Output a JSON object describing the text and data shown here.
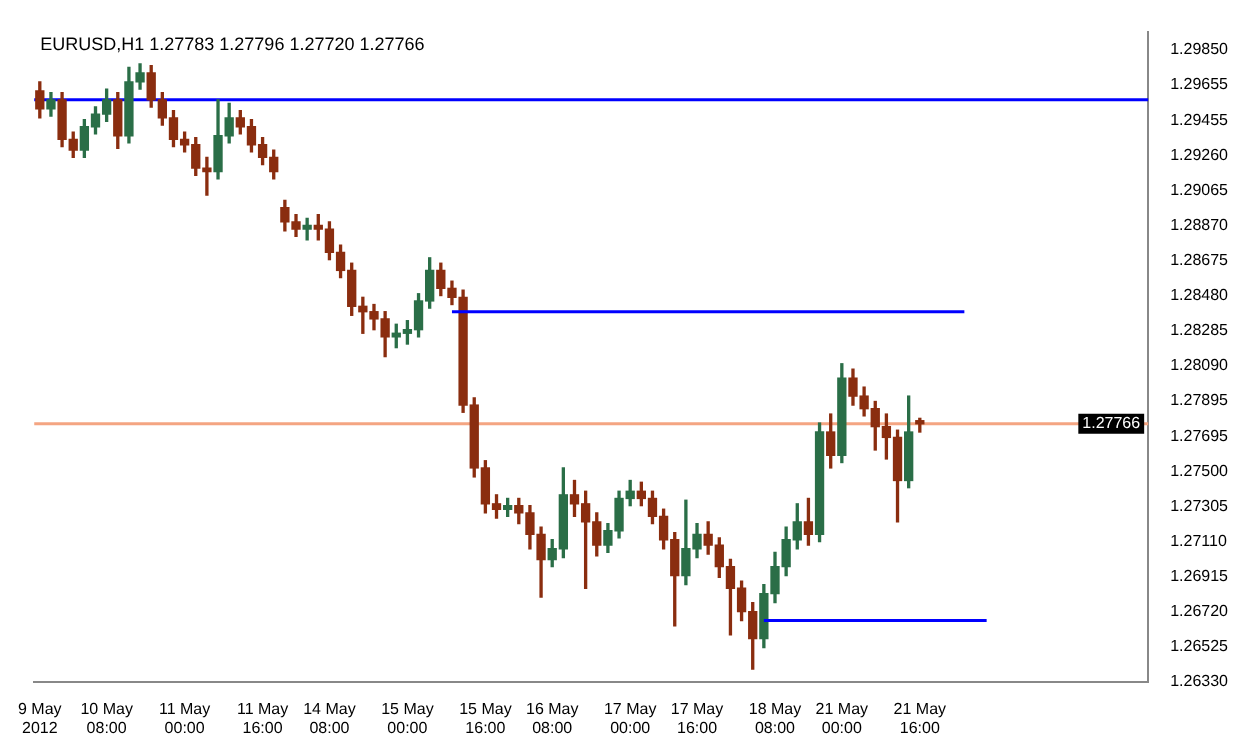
{
  "chart_data": {
    "type": "candlestick",
    "title": "EURUSD,H1 1.27783 1.27796 1.27720 1.27766",
    "categories": [
      "9 May 2012",
      null,
      null,
      null,
      null,
      null,
      "10 May 08:00",
      null,
      null,
      null,
      null,
      null,
      null,
      "11 May 00:00",
      null,
      null,
      null,
      null,
      null,
      null,
      "11 May 16:00",
      null,
      null,
      null,
      null,
      null,
      "14 May 08:00",
      null,
      null,
      null,
      null,
      null,
      null,
      "15 May 00:00",
      null,
      null,
      null,
      null,
      null,
      null,
      "15 May 16:00",
      null,
      null,
      null,
      null,
      null,
      "16 May 08:00",
      null,
      null,
      null,
      null,
      null,
      null,
      "17 May 00:00",
      null,
      null,
      null,
      null,
      null,
      "17 May 16:00",
      null,
      null,
      null,
      null,
      null,
      null,
      "18 May 08:00",
      null,
      null,
      null,
      null,
      null,
      "21 May 00:00",
      null,
      null,
      null,
      null,
      null,
      null,
      "21 May 16:00",
      null,
      null,
      null,
      null,
      null,
      null,
      null,
      null,
      null,
      null,
      null,
      null,
      null,
      null,
      null,
      null,
      null,
      null,
      null,
      null
    ],
    "ohlc": [
      [
        1.2962,
        1.2967,
        1.2947,
        1.2952
      ],
      [
        1.2952,
        1.2961,
        1.2948,
        1.2957
      ],
      [
        1.2957,
        1.2961,
        1.2931,
        1.2935
      ],
      [
        1.2935,
        1.2939,
        1.2925,
        1.2929
      ],
      [
        1.2929,
        1.2946,
        1.2925,
        1.2942
      ],
      [
        1.2942,
        1.2953,
        1.2938,
        1.2949
      ],
      [
        1.2949,
        1.2963,
        1.2945,
        1.2957
      ],
      [
        1.2957,
        1.2961,
        1.293,
        1.2937
      ],
      [
        1.2937,
        1.2975,
        1.2933,
        1.2967
      ],
      [
        1.2967,
        1.2977,
        1.2963,
        1.2972
      ],
      [
        1.2972,
        1.2976,
        1.2953,
        1.2957
      ],
      [
        1.2957,
        1.2961,
        1.2943,
        1.2947
      ],
      [
        1.2947,
        1.2951,
        1.2931,
        1.2935
      ],
      [
        1.2935,
        1.2939,
        1.2928,
        1.2932
      ],
      [
        1.2932,
        1.2936,
        1.2915,
        1.2919
      ],
      [
        1.2919,
        1.2925,
        1.2904,
        1.2917
      ],
      [
        1.2917,
        1.2957,
        1.2913,
        1.2937
      ],
      [
        1.2937,
        1.2955,
        1.2933,
        1.2947
      ],
      [
        1.2947,
        1.2951,
        1.2938,
        1.2942
      ],
      [
        1.2942,
        1.2946,
        1.2928,
        1.2932
      ],
      [
        1.2932,
        1.2936,
        1.2921,
        1.2925
      ],
      [
        1.2925,
        1.2929,
        1.2913,
        1.2917
      ],
      [
        1.2897,
        1.2901,
        1.2884,
        1.2889
      ],
      [
        1.2889,
        1.2893,
        1.2881,
        1.2885
      ],
      [
        1.2885,
        1.2891,
        1.2879,
        1.2887
      ],
      [
        1.2887,
        1.2893,
        1.2879,
        1.2885
      ],
      [
        1.2885,
        1.2889,
        1.2868,
        1.2872
      ],
      [
        1.2872,
        1.2876,
        1.2858,
        1.2862
      ],
      [
        1.2862,
        1.2866,
        1.2837,
        1.2842
      ],
      [
        1.2842,
        1.2847,
        1.2827,
        1.2839
      ],
      [
        1.2839,
        1.2843,
        1.2829,
        1.2835
      ],
      [
        1.2835,
        1.2839,
        1.2814,
        1.2825
      ],
      [
        1.2825,
        1.2832,
        1.2819,
        1.2827
      ],
      [
        1.2827,
        1.2834,
        1.2821,
        1.2829
      ],
      [
        1.2829,
        1.2849,
        1.2825,
        1.2845
      ],
      [
        1.2845,
        1.2869,
        1.2841,
        1.2862
      ],
      [
        1.2862,
        1.2866,
        1.2848,
        1.2852
      ],
      [
        1.2852,
        1.2856,
        1.2843,
        1.2847
      ],
      [
        1.2847,
        1.2851,
        1.2783,
        1.2787
      ],
      [
        1.2787,
        1.2791,
        1.2747,
        1.2752
      ],
      [
        1.2752,
        1.2756,
        1.2727,
        1.2732
      ],
      [
        1.2732,
        1.2737,
        1.2724,
        1.2729
      ],
      [
        1.2729,
        1.2735,
        1.2725,
        1.2731
      ],
      [
        1.2731,
        1.2735,
        1.2721,
        1.2727
      ],
      [
        1.2727,
        1.2731,
        1.2707,
        1.2715
      ],
      [
        1.2715,
        1.2719,
        1.268,
        1.2701
      ],
      [
        1.2701,
        1.2712,
        1.2697,
        1.2707
      ],
      [
        1.2707,
        1.2752,
        1.2702,
        1.2737
      ],
      [
        1.2737,
        1.2745,
        1.2725,
        1.2732
      ],
      [
        1.2732,
        1.2739,
        1.2685,
        1.2722
      ],
      [
        1.2722,
        1.2727,
        1.2703,
        1.2709
      ],
      [
        1.2709,
        1.2721,
        1.2705,
        1.2717
      ],
      [
        1.2717,
        1.2739,
        1.2713,
        1.2735
      ],
      [
        1.2735,
        1.2745,
        1.2731,
        1.2739
      ],
      [
        1.2739,
        1.2744,
        1.2731,
        1.2735
      ],
      [
        1.2735,
        1.2739,
        1.2721,
        1.2725
      ],
      [
        1.2725,
        1.2729,
        1.2707,
        1.2712
      ],
      [
        1.2712,
        1.2716,
        1.2664,
        1.2692
      ],
      [
        1.2692,
        1.2734,
        1.2687,
        1.2707
      ],
      [
        1.2707,
        1.2721,
        1.2702,
        1.2715
      ],
      [
        1.2715,
        1.2722,
        1.2704,
        1.2709
      ],
      [
        1.2709,
        1.2713,
        1.2691,
        1.2697
      ],
      [
        1.2697,
        1.2701,
        1.2659,
        1.2685
      ],
      [
        1.2685,
        1.2689,
        1.2667,
        1.2672
      ],
      [
        1.2672,
        1.2677,
        1.264,
        1.2657
      ],
      [
        1.2657,
        1.2687,
        1.2652,
        1.2682
      ],
      [
        1.2682,
        1.2705,
        1.2677,
        1.2697
      ],
      [
        1.2697,
        1.2719,
        1.2692,
        1.2712
      ],
      [
        1.2712,
        1.2732,
        1.2707,
        1.2722
      ],
      [
        1.2722,
        1.2735,
        1.2709,
        1.2715
      ],
      [
        1.2715,
        1.2777,
        1.2711,
        1.2772
      ],
      [
        1.2772,
        1.2782,
        1.2752,
        1.2759
      ],
      [
        1.2759,
        1.281,
        1.2755,
        1.2802
      ],
      [
        1.2802,
        1.2807,
        1.2787,
        1.2792
      ],
      [
        1.2792,
        1.2797,
        1.2781,
        1.2785
      ],
      [
        1.2785,
        1.2789,
        1.2762,
        1.2775
      ],
      [
        1.2775,
        1.2782,
        1.2757,
        1.2769
      ],
      [
        1.2769,
        1.2773,
        1.2722,
        1.2745
      ],
      [
        1.2745,
        1.2792,
        1.2741,
        1.2772
      ],
      [
        1.27783,
        1.27796,
        1.2772,
        1.27766
      ],
      null,
      null,
      null,
      null,
      null,
      null,
      null,
      null,
      null,
      null,
      null,
      null,
      null,
      null,
      null,
      null,
      null,
      null,
      null,
      null
    ],
    "colors": [
      "#8a2d0f",
      "#2a6e47",
      "#8a2d0f",
      "#8a2d0f",
      "#2a6e47",
      "#2a6e47",
      "#2a6e47",
      "#8a2d0f",
      "#2a6e47",
      "#2a6e47",
      "#8a2d0f",
      "#8a2d0f",
      "#8a2d0f",
      "#8a2d0f",
      "#8a2d0f",
      "#8a2d0f",
      "#2a6e47",
      "#2a6e47",
      "#8a2d0f",
      "#8a2d0f",
      "#8a2d0f",
      "#8a2d0f",
      "#8a2d0f",
      "#8a2d0f",
      "#2a6e47",
      "#8a2d0f",
      "#8a2d0f",
      "#8a2d0f",
      "#8a2d0f",
      "#8a2d0f",
      "#8a2d0f",
      "#8a2d0f",
      "#2a6e47",
      "#2a6e47",
      "#2a6e47",
      "#2a6e47",
      "#8a2d0f",
      "#8a2d0f",
      "#8a2d0f",
      "#8a2d0f",
      "#8a2d0f",
      "#8a2d0f",
      "#2a6e47",
      "#8a2d0f",
      "#8a2d0f",
      "#8a2d0f",
      "#2a6e47",
      "#2a6e47",
      "#8a2d0f",
      "#8a2d0f",
      "#8a2d0f",
      "#2a6e47",
      "#2a6e47",
      "#2a6e47",
      "#8a2d0f",
      "#8a2d0f",
      "#8a2d0f",
      "#8a2d0f",
      "#2a6e47",
      "#2a6e47",
      "#8a2d0f",
      "#8a2d0f",
      "#8a2d0f",
      "#8a2d0f",
      "#8a2d0f",
      "#2a6e47",
      "#2a6e47",
      "#2a6e47",
      "#2a6e47",
      "#8a2d0f",
      "#2a6e47",
      "#8a2d0f",
      "#2a6e47",
      "#8a2d0f",
      "#8a2d0f",
      "#8a2d0f",
      "#8a2d0f",
      "#8a2d0f",
      "#2a6e47",
      "#8a2d0f",
      null,
      null,
      null,
      null,
      null,
      null,
      null,
      null,
      null,
      null,
      null,
      null,
      null,
      null,
      null,
      null,
      null,
      null,
      null,
      null
    ],
    "series": [
      {
        "type": "line",
        "color": "#0000ff",
        "values": [
          null,
          null,
          null,
          null,
          null,
          null,
          null,
          null,
          null,
          null,
          null,
          null,
          null,
          null,
          null,
          null,
          null,
          null,
          null,
          null,
          null,
          null,
          null,
          null,
          null,
          null,
          null,
          null,
          null,
          null,
          null,
          null,
          null,
          null,
          null,
          null,
          null,
          1.2839,
          1.2839,
          1.2839,
          1.2839,
          1.2839,
          1.2839,
          1.2839,
          1.2839,
          1.2839,
          1.2839,
          1.2839,
          1.2839,
          1.2839,
          1.2839,
          1.2839,
          1.2839,
          1.2839,
          1.2839,
          1.2839,
          1.2839,
          1.2839,
          1.2839,
          1.2839,
          1.2839,
          1.2839,
          1.2839,
          1.2839,
          1.2839,
          1.2839,
          1.2839,
          1.2839,
          1.2839,
          1.2839,
          1.2839,
          1.2839,
          1.2839,
          1.2839,
          1.2839,
          1.2839,
          1.2839,
          1.2839,
          1.2839,
          1.2839,
          1.2839,
          1.2839,
          1.2839,
          1.2839,
          null,
          null,
          null,
          null,
          null,
          null,
          null,
          null,
          null,
          null,
          null,
          null,
          null,
          null,
          null,
          null
        ]
      },
      {
        "type": "line",
        "color": "#0000ff",
        "values": [
          null,
          null,
          null,
          null,
          null,
          null,
          null,
          null,
          null,
          null,
          null,
          null,
          null,
          null,
          null,
          null,
          null,
          null,
          null,
          null,
          null,
          null,
          null,
          null,
          null,
          null,
          null,
          null,
          null,
          null,
          null,
          null,
          null,
          null,
          null,
          null,
          null,
          null,
          null,
          null,
          null,
          null,
          null,
          null,
          null,
          null,
          null,
          null,
          null,
          null,
          null,
          null,
          null,
          null,
          null,
          null,
          null,
          null,
          null,
          null,
          null,
          null,
          null,
          null,
          null,
          1.2667,
          1.2667,
          1.2667,
          1.2667,
          1.2667,
          1.2667,
          1.2667,
          1.2667,
          1.2667,
          1.2667,
          1.2667,
          1.2667,
          1.2667,
          1.2667,
          1.2667,
          1.2667,
          1.2667,
          1.2667,
          1.2667,
          1.2667,
          1.2667,
          null,
          null,
          null,
          null,
          null,
          null,
          null,
          null,
          null,
          null,
          null,
          null,
          null,
          null
        ]
      }
    ],
    "ylim": [
      1.2633,
      1.2995
    ],
    "yticks": [
      {
        "value": 1.2985,
        "label": "1.29850"
      },
      {
        "value": 1.29655,
        "label": "1.29655"
      },
      {
        "value": 1.29455,
        "label": "1.29455"
      },
      {
        "value": 1.2926,
        "label": "1.29260"
      },
      {
        "value": 1.29065,
        "label": "1.29065"
      },
      {
        "value": 1.2887,
        "label": "1.28870"
      },
      {
        "value": 1.28675,
        "label": "1.28675"
      },
      {
        "value": 1.2848,
        "label": "1.28480"
      },
      {
        "value": 1.28285,
        "label": "1.28285"
      },
      {
        "value": 1.2809,
        "label": "1.28090"
      },
      {
        "value": 1.27895,
        "label": "1.27895"
      },
      {
        "value": 1.27695,
        "label": "1.27695"
      },
      {
        "value": 1.275,
        "label": "1.27500"
      },
      {
        "value": 1.27305,
        "label": "1.27305"
      },
      {
        "value": 1.2711,
        "label": "1.27110"
      },
      {
        "value": 1.26915,
        "label": "1.26915"
      },
      {
        "value": 1.2672,
        "label": "1.26720"
      },
      {
        "value": 1.26525,
        "label": "1.26525"
      },
      {
        "value": 1.2633,
        "label": "1.26330"
      }
    ],
    "ref_lines": [
      {
        "axis": "y",
        "value": 1.2957,
        "color": "#0000ff"
      },
      {
        "axis": "y",
        "value": 1.27766,
        "label": "1.27766",
        "color": "#f4a582"
      }
    ]
  }
}
